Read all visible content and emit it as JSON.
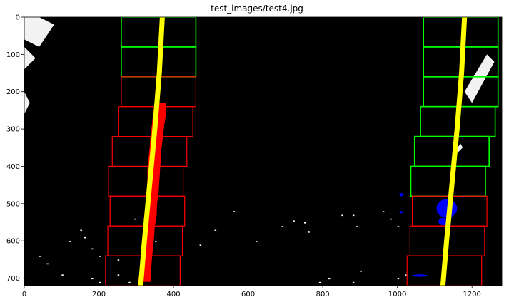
{
  "chart_data": {
    "type": "scatter",
    "title": "test_images/test4.jpg",
    "xlabel": "",
    "ylabel": "",
    "xlim": [
      0,
      1280
    ],
    "ylim": [
      720,
      0
    ],
    "x_ticks": [
      0,
      200,
      400,
      600,
      800,
      1000,
      1200
    ],
    "y_ticks": [
      0,
      100,
      200,
      300,
      400,
      500,
      600,
      700
    ],
    "grid": false,
    "legend": "none",
    "background": "#000000",
    "colors": {
      "binary": "#ffffff",
      "left_pixels": "#ff0000",
      "right_pixels": "#0000ff",
      "fit_line": "#ffff00",
      "window_hit": "#00ff00",
      "window_miss": "#ff0000"
    },
    "windows": {
      "left": [
        {
          "x": [
            260,
            460
          ],
          "y": [
            0,
            80
          ],
          "status": "hit"
        },
        {
          "x": [
            260,
            460
          ],
          "y": [
            80,
            160
          ],
          "status": "hit"
        },
        {
          "x": [
            260,
            460
          ],
          "y": [
            160,
            240
          ],
          "status": "miss"
        },
        {
          "x": [
            252,
            452
          ],
          "y": [
            240,
            320
          ],
          "status": "miss"
        },
        {
          "x": [
            236,
            436
          ],
          "y": [
            320,
            400
          ],
          "status": "miss"
        },
        {
          "x": [
            226,
            426
          ],
          "y": [
            400,
            480
          ],
          "status": "miss"
        },
        {
          "x": [
            230,
            430
          ],
          "y": [
            480,
            560
          ],
          "status": "miss"
        },
        {
          "x": [
            224,
            424
          ],
          "y": [
            560,
            640
          ],
          "status": "miss"
        },
        {
          "x": [
            218,
            418
          ],
          "y": [
            640,
            720
          ],
          "status": "miss"
        }
      ],
      "right": [
        {
          "x": [
            1070,
            1270
          ],
          "y": [
            0,
            80
          ],
          "status": "hit"
        },
        {
          "x": [
            1070,
            1270
          ],
          "y": [
            80,
            160
          ],
          "status": "hit"
        },
        {
          "x": [
            1070,
            1270
          ],
          "y": [
            160,
            240
          ],
          "status": "hit"
        },
        {
          "x": [
            1062,
            1262
          ],
          "y": [
            240,
            320
          ],
          "status": "hit"
        },
        {
          "x": [
            1046,
            1246
          ],
          "y": [
            320,
            400
          ],
          "status": "hit"
        },
        {
          "x": [
            1036,
            1236
          ],
          "y": [
            400,
            480
          ],
          "status": "hit"
        },
        {
          "x": [
            1040,
            1240
          ],
          "y": [
            480,
            560
          ],
          "status": "miss"
        },
        {
          "x": [
            1034,
            1234
          ],
          "y": [
            560,
            640
          ],
          "status": "miss"
        },
        {
          "x": [
            1026,
            1226
          ],
          "y": [
            640,
            720
          ],
          "status": "miss"
        }
      ]
    },
    "fit_lines": {
      "left": [
        [
          370,
          0
        ],
        [
          362,
          150
        ],
        [
          350,
          300
        ],
        [
          336,
          450
        ],
        [
          322,
          600
        ],
        [
          312,
          720
        ]
      ],
      "right": [
        [
          1180,
          0
        ],
        [
          1172,
          150
        ],
        [
          1160,
          300
        ],
        [
          1146,
          450
        ],
        [
          1132,
          600
        ],
        [
          1122,
          720
        ]
      ]
    },
    "left_pixels": {
      "y": [
        230,
        260,
        290,
        320,
        350,
        380,
        410,
        440,
        470,
        500,
        530,
        560,
        590,
        620,
        650,
        680,
        710
      ],
      "x_min": [
        350,
        345,
        342,
        338,
        336,
        333,
        330,
        330,
        328,
        326,
        324,
        322,
        318,
        315,
        312,
        310,
        305
      ],
      "x_max": [
        380,
        380,
        375,
        372,
        368,
        366,
        364,
        362,
        360,
        356,
        355,
        350,
        348,
        345,
        342,
        340,
        338
      ]
    },
    "right_pixels": [
      {
        "x": 1105,
        "y": 488,
        "w": 55,
        "h": 50
      },
      {
        "x": 1110,
        "y": 538,
        "w": 25,
        "h": 20
      },
      {
        "x": 1005,
        "y": 472,
        "w": 12,
        "h": 8
      },
      {
        "x": 1005,
        "y": 520,
        "w": 10,
        "h": 6
      },
      {
        "x": 1170,
        "y": 478,
        "w": 12,
        "h": 6
      },
      {
        "x": 1040,
        "y": 690,
        "w": 40,
        "h": 6
      }
    ],
    "binary_blobs": [
      {
        "pts": [
          [
            0,
            0
          ],
          [
            40,
            0
          ],
          [
            80,
            20
          ],
          [
            40,
            80
          ],
          [
            0,
            60
          ]
        ]
      },
      {
        "pts": [
          [
            0,
            80
          ],
          [
            30,
            110
          ],
          [
            0,
            140
          ]
        ]
      },
      {
        "pts": [
          [
            0,
            200
          ],
          [
            15,
            230
          ],
          [
            0,
            260
          ]
        ]
      },
      {
        "pts": [
          [
            1180,
            200
          ],
          [
            1240,
            100
          ],
          [
            1260,
            120
          ],
          [
            1200,
            230
          ]
        ]
      },
      {
        "pts": [
          [
            1150,
            360
          ],
          [
            1170,
            340
          ],
          [
            1175,
            350
          ],
          [
            1155,
            370
          ]
        ]
      }
    ],
    "binary_specks": [
      [
        150,
        570
      ],
      [
        160,
        590
      ],
      [
        120,
        600
      ],
      [
        40,
        640
      ],
      [
        60,
        660
      ],
      [
        100,
        690
      ],
      [
        180,
        700
      ],
      [
        200,
        710
      ],
      [
        250,
        690
      ],
      [
        280,
        710
      ],
      [
        295,
        540
      ],
      [
        320,
        540
      ],
      [
        350,
        600
      ],
      [
        470,
        610
      ],
      [
        510,
        570
      ],
      [
        560,
        520
      ],
      [
        620,
        600
      ],
      [
        690,
        560
      ],
      [
        720,
        545
      ],
      [
        750,
        550
      ],
      [
        760,
        575
      ],
      [
        850,
        530
      ],
      [
        880,
        530
      ],
      [
        890,
        560
      ],
      [
        960,
        520
      ],
      [
        980,
        540
      ],
      [
        1000,
        560
      ],
      [
        790,
        710
      ],
      [
        815,
        700
      ],
      [
        880,
        710
      ],
      [
        900,
        680
      ],
      [
        1000,
        700
      ],
      [
        1020,
        690
      ],
      [
        200,
        640
      ],
      [
        180,
        620
      ],
      [
        250,
        650
      ]
    ]
  }
}
